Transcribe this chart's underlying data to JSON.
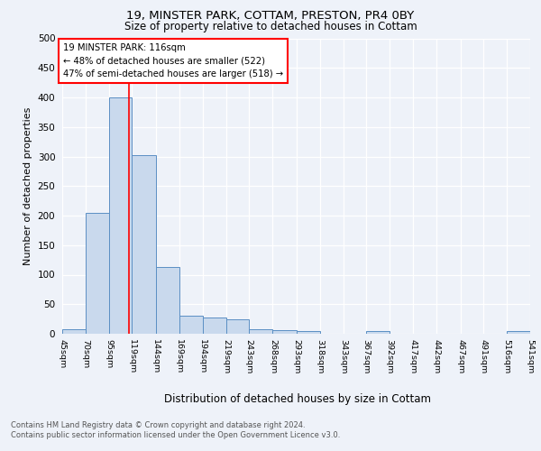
{
  "title1": "19, MINSTER PARK, COTTAM, PRESTON, PR4 0BY",
  "title2": "Size of property relative to detached houses in Cottam",
  "xlabel": "Distribution of detached houses by size in Cottam",
  "ylabel": "Number of detached properties",
  "bins": [
    45,
    70,
    95,
    119,
    144,
    169,
    194,
    219,
    243,
    268,
    293,
    318,
    343,
    367,
    392,
    417,
    442,
    467,
    491,
    516,
    541
  ],
  "counts": [
    8,
    205,
    400,
    302,
    113,
    30,
    27,
    25,
    8,
    6,
    4,
    0,
    0,
    4,
    0,
    0,
    0,
    0,
    0,
    5
  ],
  "bar_color": "#c9d9ed",
  "bar_edge_color": "#5b8fc4",
  "vline_x": 116,
  "vline_color": "red",
  "annotation_text": "19 MINSTER PARK: 116sqm\n← 48% of detached houses are smaller (522)\n47% of semi-detached houses are larger (518) →",
  "annotation_box_color": "white",
  "annotation_box_edge_color": "red",
  "ylim": [
    0,
    500
  ],
  "yticks": [
    0,
    50,
    100,
    150,
    200,
    250,
    300,
    350,
    400,
    450,
    500
  ],
  "footnote": "Contains HM Land Registry data © Crown copyright and database right 2024.\nContains public sector information licensed under the Open Government Licence v3.0.",
  "tick_labels": [
    "45sqm",
    "70sqm",
    "95sqm",
    "119sqm",
    "144sqm",
    "169sqm",
    "194sqm",
    "219sqm",
    "243sqm",
    "268sqm",
    "293sqm",
    "318sqm",
    "343sqm",
    "367sqm",
    "392sqm",
    "417sqm",
    "442sqm",
    "467sqm",
    "491sqm",
    "516sqm",
    "541sqm"
  ],
  "background_color": "#eef2f9",
  "grid_color": "#ffffff"
}
